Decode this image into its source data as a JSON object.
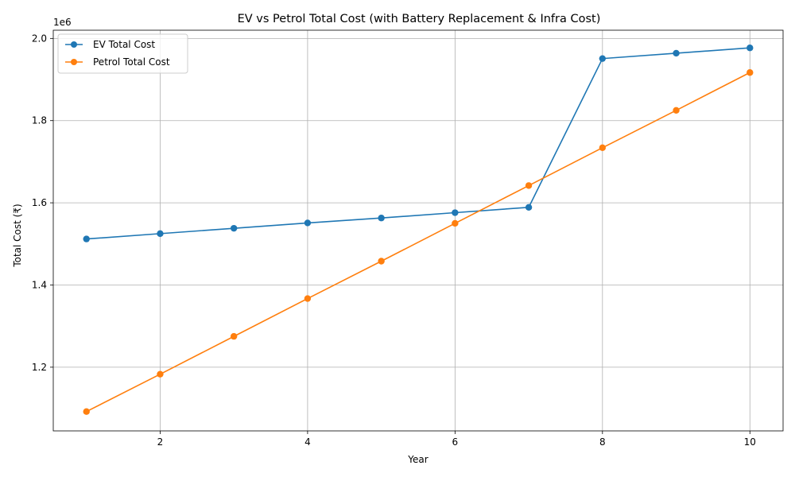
{
  "chart_data": {
    "type": "line",
    "title": "EV vs Petrol Total Cost (with Battery Replacement & Infra Cost)",
    "xlabel": "Year",
    "ylabel": "Total Cost (₹)",
    "y_offset_label": "1e6",
    "x": [
      1,
      2,
      3,
      4,
      5,
      6,
      7,
      8,
      9,
      10
    ],
    "xlim": [
      0.55,
      10.45
    ],
    "ylim": [
      1045000,
      2020000
    ],
    "xticks": [
      2,
      4,
      6,
      8,
      10
    ],
    "yticks": [
      1200000,
      1400000,
      1600000,
      1800000,
      2000000
    ],
    "xtick_labels": [
      "2",
      "4",
      "6",
      "8",
      "10"
    ],
    "ytick_labels": [
      "1.2",
      "1.4",
      "1.6",
      "1.8",
      "2.0"
    ],
    "grid": true,
    "legend_position": "upper left",
    "series": [
      {
        "name": "EV Total Cost",
        "color": "#1f77b4",
        "marker": "circle",
        "values": [
          1512000,
          1525000,
          1538000,
          1551000,
          1563000,
          1576000,
          1589000,
          1951000,
          1964000,
          1977000
        ]
      },
      {
        "name": "Petrol Total Cost",
        "color": "#ff7f0e",
        "marker": "circle",
        "values": [
          1092000,
          1183000,
          1275000,
          1367000,
          1458000,
          1550000,
          1642000,
          1734000,
          1825000,
          1917000
        ]
      }
    ]
  }
}
